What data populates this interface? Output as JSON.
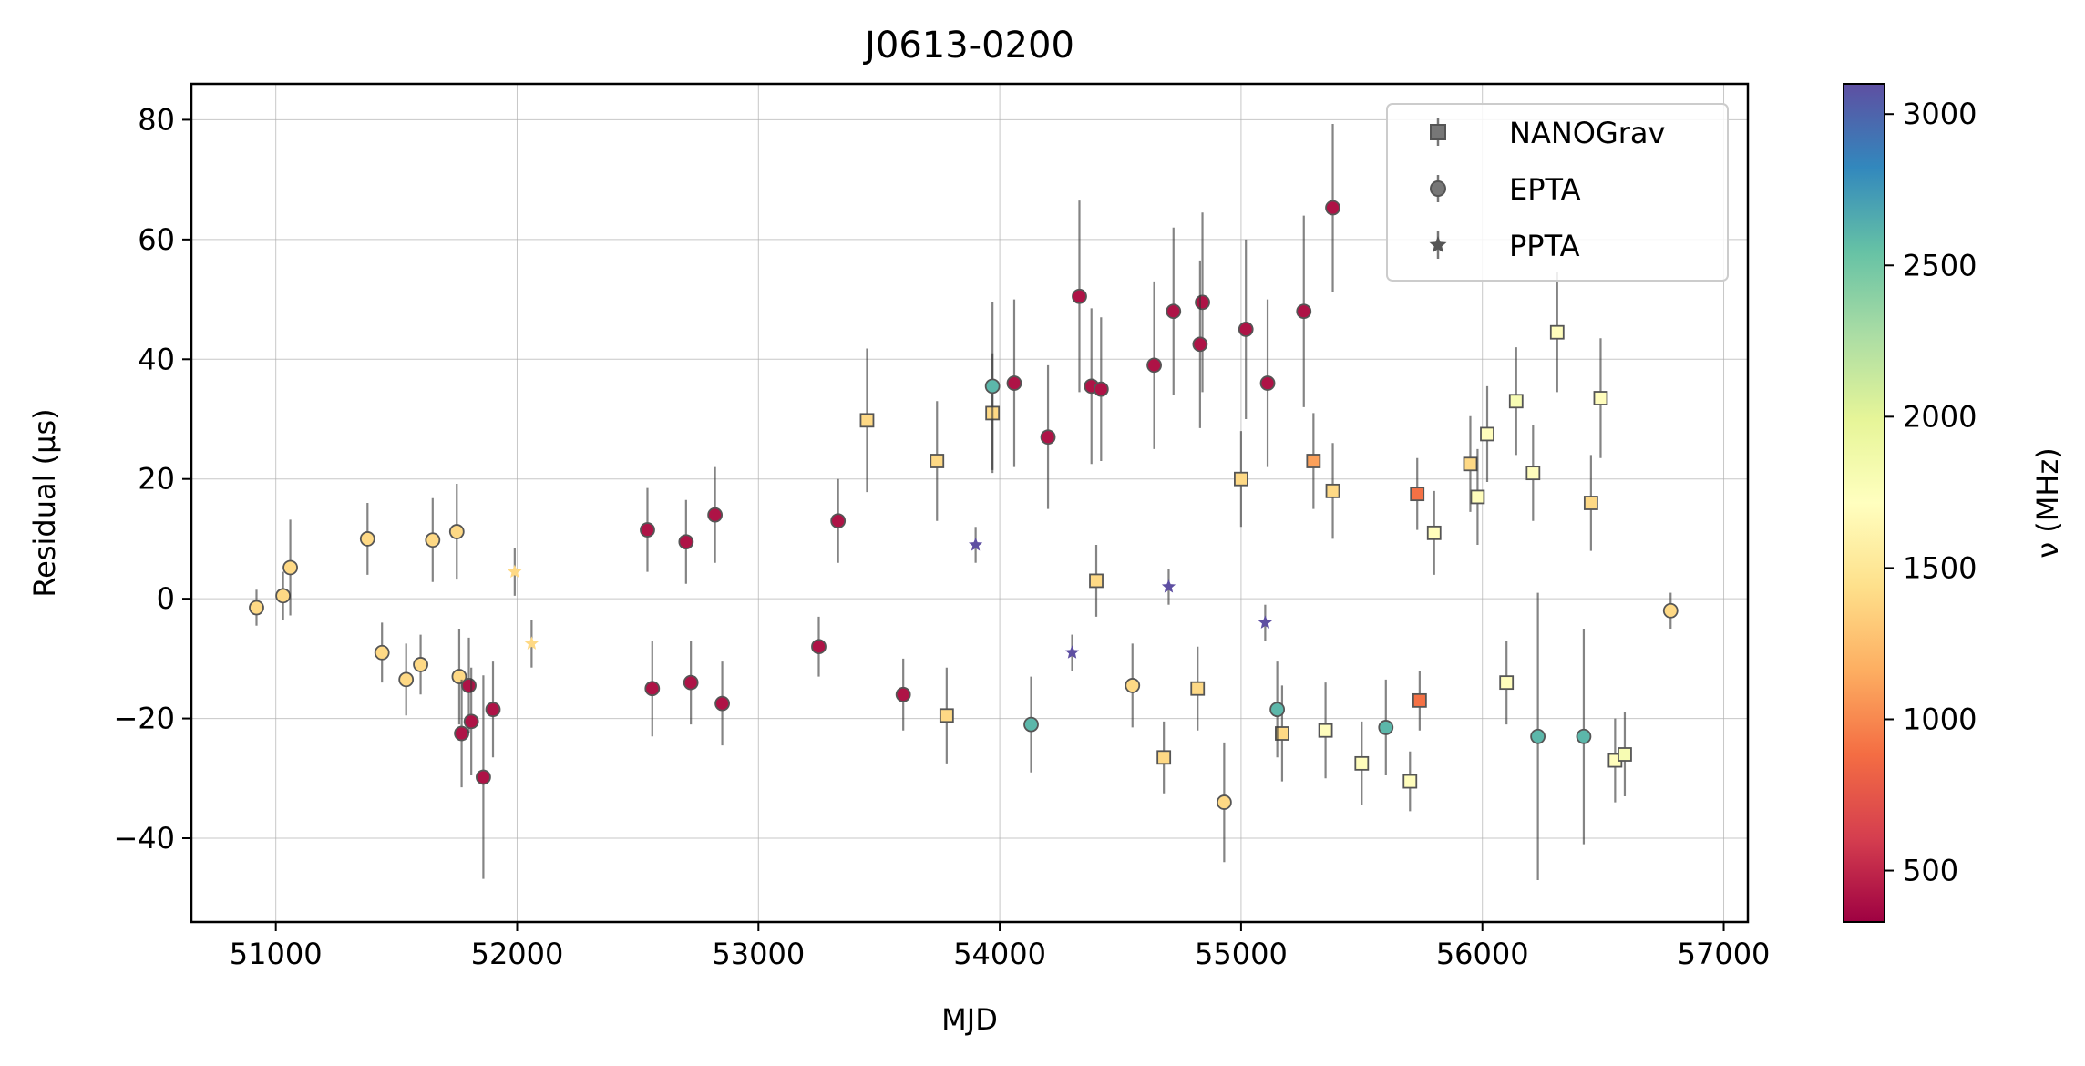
{
  "chart_data": {
    "type": "scatter",
    "title": "J0613-0200",
    "xlabel": "MJD",
    "ylabel": "Residual (μs)",
    "colorbar_label": "ν (MHz)",
    "xlim": [
      50650,
      57100
    ],
    "ylim": [
      -54,
      86
    ],
    "x_ticks": [
      51000,
      52000,
      53000,
      54000,
      55000,
      56000,
      57000
    ],
    "x_tick_labels": [
      "51000",
      "52000",
      "53000",
      "54000",
      "55000",
      "56000",
      "57000"
    ],
    "y_ticks": [
      -40,
      -20,
      0,
      20,
      40,
      60,
      80
    ],
    "y_tick_labels": [
      "−40",
      "−20",
      "0",
      "20",
      "40",
      "60",
      "80"
    ],
    "colorbar_range": [
      330,
      3100
    ],
    "colorbar_ticks": [
      500,
      1000,
      1500,
      2000,
      2500,
      3000
    ],
    "colorbar_tick_labels": [
      "500",
      "1000",
      "1500",
      "2000",
      "2500",
      "3000"
    ],
    "colormap": "Spectral",
    "colormap_stops": [
      "#9e0142",
      "#d53e4f",
      "#f46d43",
      "#fdae61",
      "#fee08b",
      "#ffffbf",
      "#e6f598",
      "#abdda4",
      "#66c2a5",
      "#3288bd",
      "#5e4fa2"
    ],
    "grid": true,
    "legend_position": "upper right",
    "legend": [
      {
        "label": "NANOGrav",
        "marker": "square"
      },
      {
        "label": "EPTA",
        "marker": "circle"
      },
      {
        "label": "PPTA",
        "marker": "star"
      }
    ],
    "series": [
      {
        "name": "NANOGrav",
        "marker": "square",
        "points": [
          {
            "x": 53450,
            "y": 29.8,
            "err": 12,
            "freq": 1400
          },
          {
            "x": 53740,
            "y": 23.0,
            "err": 10,
            "freq": 1400
          },
          {
            "x": 53780,
            "y": -19.5,
            "err": 8,
            "freq": 1400
          },
          {
            "x": 53970,
            "y": 31.0,
            "err": 10,
            "freq": 1400
          },
          {
            "x": 54400,
            "y": 3.0,
            "err": 6,
            "freq": 1400
          },
          {
            "x": 54680,
            "y": -26.5,
            "err": 6,
            "freq": 1400
          },
          {
            "x": 54820,
            "y": -15.0,
            "err": 7,
            "freq": 1400
          },
          {
            "x": 55000,
            "y": 20.0,
            "err": 8,
            "freq": 1400
          },
          {
            "x": 55300,
            "y": 23.0,
            "err": 8,
            "freq": 1100
          },
          {
            "x": 55170,
            "y": -22.5,
            "err": 8,
            "freq": 1400
          },
          {
            "x": 55350,
            "y": -22.0,
            "err": 8,
            "freq": 1700
          },
          {
            "x": 55380,
            "y": 18.0,
            "err": 8,
            "freq": 1400
          },
          {
            "x": 55500,
            "y": -27.5,
            "err": 7,
            "freq": 1700
          },
          {
            "x": 55700,
            "y": -30.5,
            "err": 5,
            "freq": 1700
          },
          {
            "x": 55730,
            "y": 17.5,
            "err": 6,
            "freq": 900
          },
          {
            "x": 55740,
            "y": -17.0,
            "err": 5,
            "freq": 900
          },
          {
            "x": 55950,
            "y": 22.5,
            "err": 8,
            "freq": 1400
          },
          {
            "x": 55980,
            "y": 17.0,
            "err": 8,
            "freq": 1700
          },
          {
            "x": 56020,
            "y": 27.5,
            "err": 8,
            "freq": 1700
          },
          {
            "x": 56140,
            "y": 33.0,
            "err": 9,
            "freq": 1800
          },
          {
            "x": 56210,
            "y": 21.0,
            "err": 8,
            "freq": 1700
          },
          {
            "x": 56310,
            "y": 44.5,
            "err": 10,
            "freq": 1700
          },
          {
            "x": 56490,
            "y": 33.5,
            "err": 10,
            "freq": 1700
          },
          {
            "x": 56550,
            "y": -27.0,
            "err": 7,
            "freq": 1700
          },
          {
            "x": 56590,
            "y": -26.0,
            "err": 7,
            "freq": 1800
          },
          {
            "x": 56450,
            "y": 16.0,
            "err": 8,
            "freq": 1400
          },
          {
            "x": 56100,
            "y": -14.0,
            "err": 7,
            "freq": 1700
          },
          {
            "x": 55800,
            "y": 11.0,
            "err": 7,
            "freq": 1700
          }
        ]
      },
      {
        "name": "EPTA",
        "marker": "circle",
        "points": [
          {
            "x": 50920,
            "y": -1.5,
            "err": 3,
            "freq": 1400
          },
          {
            "x": 51030,
            "y": 0.5,
            "err": 4,
            "freq": 1400
          },
          {
            "x": 51060,
            "y": 5.2,
            "err": 8,
            "freq": 1400
          },
          {
            "x": 51380,
            "y": 10.0,
            "err": 6,
            "freq": 1400
          },
          {
            "x": 51440,
            "y": -9.0,
            "err": 5,
            "freq": 1400
          },
          {
            "x": 51540,
            "y": -13.5,
            "err": 6,
            "freq": 1400
          },
          {
            "x": 51600,
            "y": -11.0,
            "err": 5,
            "freq": 1400
          },
          {
            "x": 51650,
            "y": 9.8,
            "err": 7,
            "freq": 1400
          },
          {
            "x": 51750,
            "y": 11.2,
            "err": 8,
            "freq": 1400
          },
          {
            "x": 51760,
            "y": -13.0,
            "err": 8,
            "freq": 1400
          },
          {
            "x": 51770,
            "y": -22.5,
            "err": 9,
            "freq": 410
          },
          {
            "x": 51800,
            "y": -14.5,
            "err": 8,
            "freq": 410
          },
          {
            "x": 51810,
            "y": -20.5,
            "err": 9,
            "freq": 410
          },
          {
            "x": 51860,
            "y": -29.8,
            "err": 17,
            "freq": 410
          },
          {
            "x": 51900,
            "y": -18.5,
            "err": 8,
            "freq": 410
          },
          {
            "x": 52560,
            "y": -15.0,
            "err": 8,
            "freq": 410
          },
          {
            "x": 52540,
            "y": 11.5,
            "err": 7,
            "freq": 410
          },
          {
            "x": 52700,
            "y": 9.5,
            "err": 7,
            "freq": 410
          },
          {
            "x": 52720,
            "y": -14.0,
            "err": 7,
            "freq": 410
          },
          {
            "x": 52820,
            "y": 14.0,
            "err": 8,
            "freq": 410
          },
          {
            "x": 52850,
            "y": -17.5,
            "err": 7,
            "freq": 410
          },
          {
            "x": 53250,
            "y": -8.0,
            "err": 5,
            "freq": 410
          },
          {
            "x": 53330,
            "y": 13.0,
            "err": 7,
            "freq": 410
          },
          {
            "x": 53600,
            "y": -16.0,
            "err": 6,
            "freq": 410
          },
          {
            "x": 53970,
            "y": 35.5,
            "err": 14,
            "freq": 2600
          },
          {
            "x": 54060,
            "y": 36.0,
            "err": 14,
            "freq": 410
          },
          {
            "x": 54200,
            "y": 27.0,
            "err": 12,
            "freq": 410
          },
          {
            "x": 54330,
            "y": 50.5,
            "err": 16,
            "freq": 410
          },
          {
            "x": 54380,
            "y": 35.5,
            "err": 13,
            "freq": 410
          },
          {
            "x": 54420,
            "y": 35.0,
            "err": 12,
            "freq": 410
          },
          {
            "x": 54640,
            "y": 39.0,
            "err": 14,
            "freq": 410
          },
          {
            "x": 54720,
            "y": 48.0,
            "err": 14,
            "freq": 410
          },
          {
            "x": 54840,
            "y": 49.5,
            "err": 15,
            "freq": 410
          },
          {
            "x": 54830,
            "y": 42.5,
            "err": 14,
            "freq": 410
          },
          {
            "x": 55020,
            "y": 45.0,
            "err": 15,
            "freq": 410
          },
          {
            "x": 55110,
            "y": 36.0,
            "err": 14,
            "freq": 410
          },
          {
            "x": 55260,
            "y": 48.0,
            "err": 16,
            "freq": 410
          },
          {
            "x": 55380,
            "y": 65.3,
            "err": 14,
            "freq": 410
          },
          {
            "x": 54930,
            "y": -34.0,
            "err": 10,
            "freq": 1400
          },
          {
            "x": 54550,
            "y": -14.5,
            "err": 7,
            "freq": 1400
          },
          {
            "x": 54130,
            "y": -21.0,
            "err": 8,
            "freq": 2600
          },
          {
            "x": 55150,
            "y": -18.5,
            "err": 8,
            "freq": 2600
          },
          {
            "x": 55600,
            "y": -21.5,
            "err": 8,
            "freq": 2600
          },
          {
            "x": 56230,
            "y": -23.0,
            "err": 24,
            "freq": 2600
          },
          {
            "x": 56420,
            "y": -23.0,
            "err": 18,
            "freq": 2600
          },
          {
            "x": 56780,
            "y": -2.0,
            "err": 3,
            "freq": 1400
          }
        ]
      },
      {
        "name": "PPTA",
        "marker": "star",
        "points": [
          {
            "x": 51990,
            "y": 4.5,
            "err": 4,
            "freq": 1400
          },
          {
            "x": 52060,
            "y": -7.5,
            "err": 4,
            "freq": 1400
          },
          {
            "x": 53900,
            "y": 9.0,
            "err": 3,
            "freq": 3100
          },
          {
            "x": 54300,
            "y": -9.0,
            "err": 3,
            "freq": 3100
          },
          {
            "x": 54700,
            "y": 2.0,
            "err": 3,
            "freq": 3100
          },
          {
            "x": 55100,
            "y": -4.0,
            "err": 3,
            "freq": 3100
          }
        ]
      }
    ]
  }
}
